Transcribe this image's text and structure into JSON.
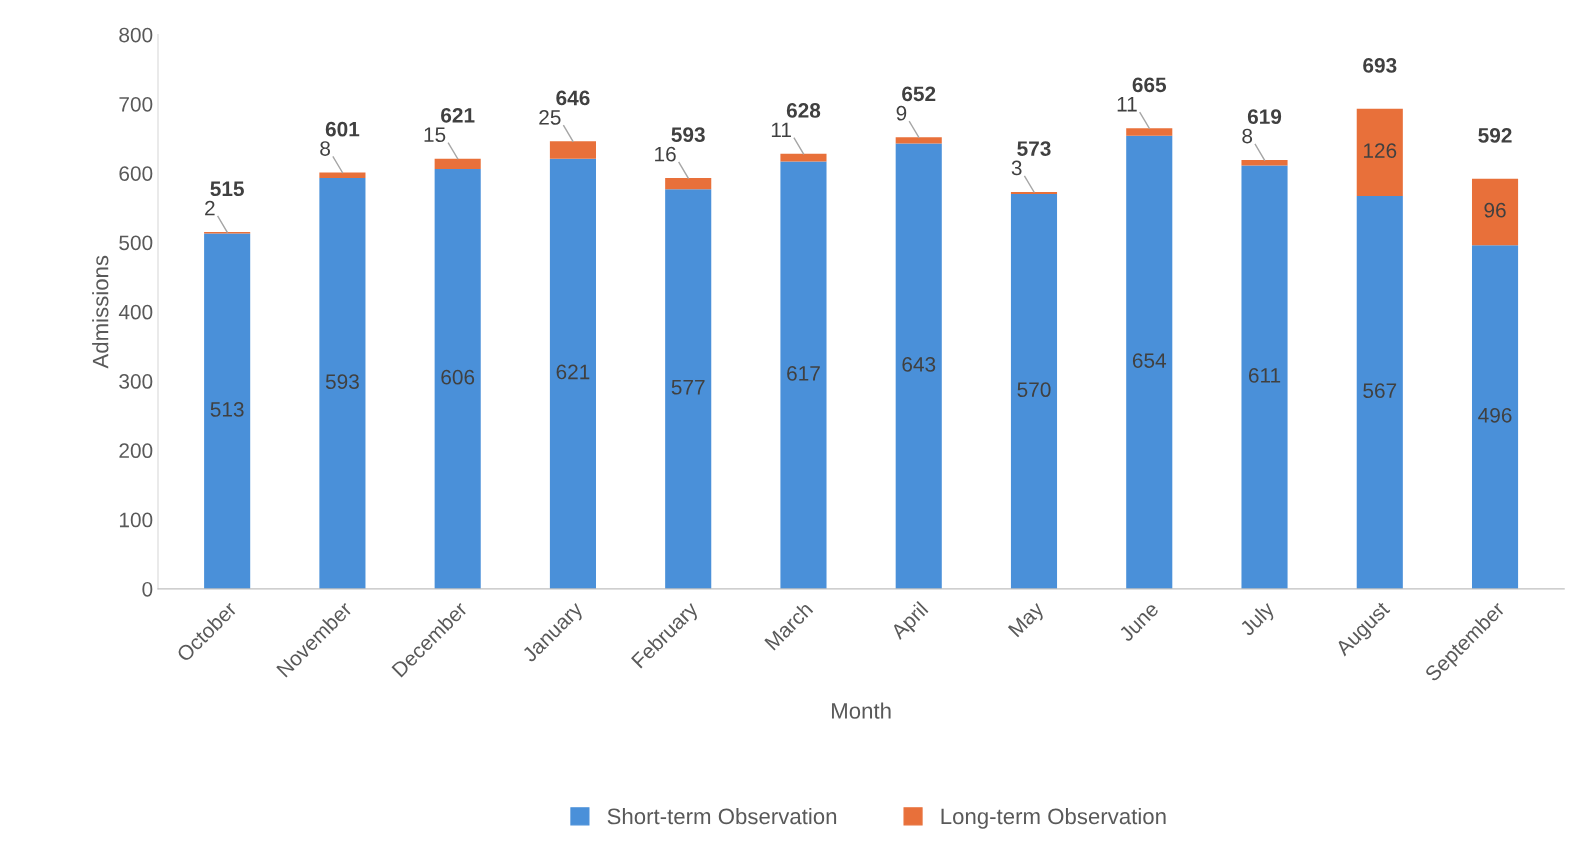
{
  "chart_data": {
    "type": "bar",
    "stacked": true,
    "xlabel": "Month",
    "ylabel": "Admissions",
    "categories": [
      "October",
      "November",
      "December",
      "January",
      "February",
      "March",
      "April",
      "May",
      "June",
      "July",
      "August",
      "September"
    ],
    "series": [
      {
        "name": "Short-term Observation",
        "color": "#4a90d9",
        "values": [
          513,
          593,
          606,
          621,
          577,
          617,
          643,
          570,
          654,
          611,
          567,
          496
        ]
      },
      {
        "name": "Long-term Observation",
        "color": "#e8703a",
        "values": [
          2,
          8,
          15,
          25,
          16,
          11,
          9,
          3,
          11,
          8,
          126,
          96
        ]
      }
    ],
    "totals": [
      "515",
      "601",
      "621",
      "646",
      "593",
      "628",
      "652",
      "573",
      "665",
      "619",
      "693",
      "592"
    ],
    "ylim": [
      0,
      800
    ],
    "yticks": [
      0,
      100,
      200,
      300,
      400,
      500,
      600,
      700,
      800
    ],
    "data_labels": true,
    "grid": false,
    "legend": "bottom"
  }
}
